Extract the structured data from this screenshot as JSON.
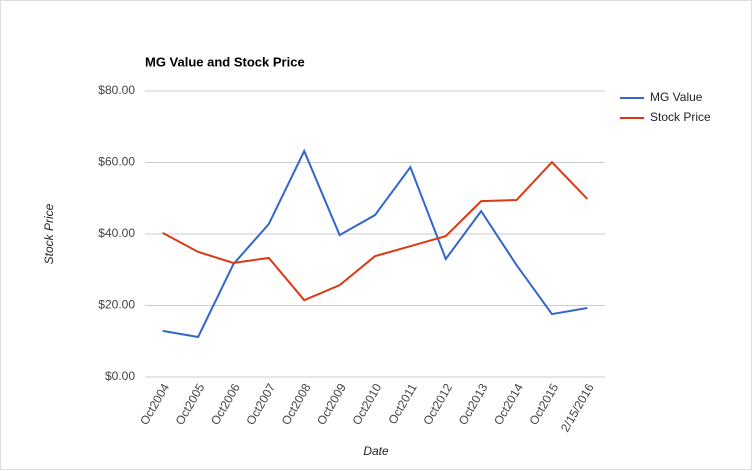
{
  "chart_data": {
    "type": "line",
    "title": "MG Value and Stock Price",
    "x_label": "Date",
    "y_label": "Stock Price",
    "categories": [
      "Oct2004",
      "Oct2005",
      "Oct2006",
      "Oct2007",
      "Oct2008",
      "Oct2009",
      "Oct2010",
      "Oct2011",
      "Oct2012",
      "Oct2013",
      "Oct2014",
      "Oct2015",
      "2/15/2016"
    ],
    "series": [
      {
        "name": "MG Value",
        "color": "#3366cc",
        "values": [
          12.9,
          11.2,
          31.6,
          42.8,
          63.2,
          39.7,
          45.3,
          58.7,
          33,
          46.4,
          31.3,
          17.6,
          19.3
        ]
      },
      {
        "name": "Stock Price",
        "color": "#dc3912",
        "values": [
          40.3,
          35,
          31.9,
          33.3,
          21.5,
          25.7,
          33.8,
          36.6,
          39.4,
          49.2,
          49.5,
          60.1,
          49.8
        ]
      }
    ],
    "ylim": [
      0,
      80
    ],
    "yticks": [
      {
        "value": 0,
        "label": "$0.00"
      },
      {
        "value": 20,
        "label": "$20.00"
      },
      {
        "value": 40,
        "label": "$40.00"
      },
      {
        "value": 60,
        "label": "$60.00"
      },
      {
        "value": 80,
        "label": "$80.00"
      }
    ],
    "grid": true,
    "legend": "right"
  }
}
